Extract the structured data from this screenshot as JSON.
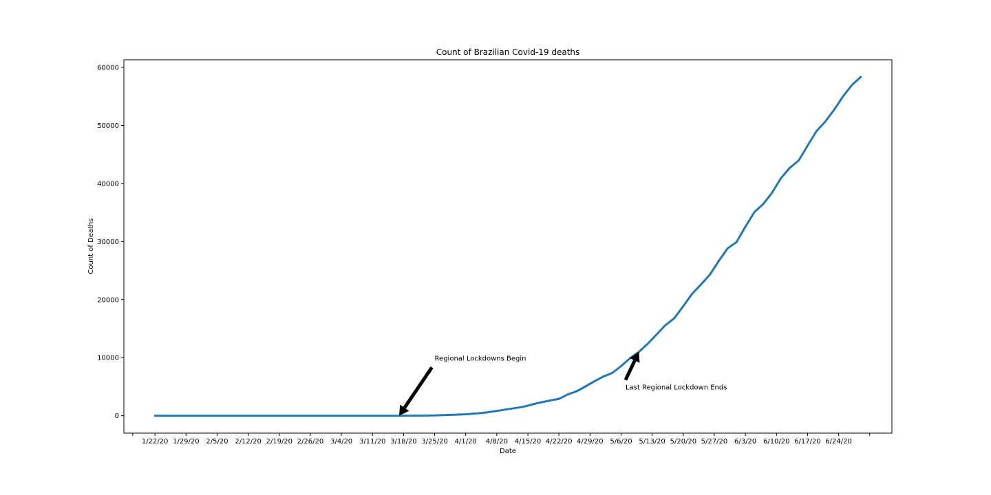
{
  "chart_data": {
    "type": "line",
    "title": "Count of Brazilian Covid-19 deaths",
    "xlabel": "Date",
    "ylabel": "Count of Deaths",
    "grid": false,
    "legend": false,
    "xlim": [
      "1/15/20",
      "7/6/20"
    ],
    "ylim": [
      -3000,
      61300
    ],
    "x_ticks": [
      "1/22/20",
      "1/29/20",
      "2/5/20",
      "2/12/20",
      "2/19/20",
      "2/26/20",
      "3/4/20",
      "3/11/20",
      "3/18/20",
      "3/25/20",
      "4/1/20",
      "4/8/20",
      "4/15/20",
      "4/22/20",
      "4/29/20",
      "5/6/20",
      "5/13/20",
      "5/20/20",
      "5/27/20",
      "6/3/20",
      "6/10/20",
      "6/17/20",
      "6/24/20"
    ],
    "y_ticks": [
      0,
      10000,
      20000,
      30000,
      40000,
      50000,
      60000
    ],
    "series": [
      {
        "name": "",
        "color": "#1f77b4",
        "points": [
          [
            "1/22/20",
            0
          ],
          [
            "3/18/20",
            0
          ],
          [
            "3/25/20",
            60
          ],
          [
            "4/1/20",
            240
          ],
          [
            "4/5/20",
            490
          ],
          [
            "4/8/20",
            820
          ],
          [
            "4/10/20",
            1060
          ],
          [
            "4/14/20",
            1530
          ],
          [
            "4/17/20",
            2140
          ],
          [
            "4/19/20",
            2460
          ],
          [
            "4/22/20",
            2910
          ],
          [
            "4/24/20",
            3670
          ],
          [
            "4/26/20",
            4210
          ],
          [
            "4/28/20",
            5050
          ],
          [
            "4/30/20",
            5930
          ],
          [
            "5/2/20",
            6750
          ],
          [
            "5/4/20",
            7360
          ],
          [
            "5/6/20",
            8540
          ],
          [
            "5/8/20",
            9900
          ],
          [
            "5/10/20",
            10980
          ],
          [
            "5/12/20",
            12400
          ],
          [
            "5/14/20",
            13990
          ],
          [
            "5/16/20",
            15600
          ],
          [
            "5/18/20",
            16800
          ],
          [
            "5/20/20",
            18860
          ],
          [
            "5/22/20",
            20990
          ],
          [
            "5/24/20",
            22600
          ],
          [
            "5/26/20",
            24300
          ],
          [
            "5/28/20",
            26650
          ],
          [
            "5/30/20",
            28830
          ],
          [
            "6/1/20",
            29900
          ],
          [
            "6/3/20",
            32550
          ],
          [
            "6/5/20",
            35050
          ],
          [
            "6/7/20",
            36450
          ],
          [
            "6/9/20",
            38400
          ],
          [
            "6/11/20",
            40900
          ],
          [
            "6/13/20",
            42700
          ],
          [
            "6/15/20",
            43950
          ],
          [
            "6/17/20",
            46500
          ],
          [
            "6/19/20",
            49000
          ],
          [
            "6/21/20",
            50650
          ],
          [
            "6/23/20",
            52700
          ],
          [
            "6/25/20",
            55000
          ],
          [
            "6/27/20",
            56950
          ],
          [
            "6/29/20",
            58350
          ]
        ]
      }
    ],
    "annotations": [
      {
        "text": "Regional Lockdowns Begin",
        "point": [
          "3/17/20",
          0
        ],
        "text_at": [
          "3/25/20",
          9500
        ]
      },
      {
        "text": "Last Regional Lockdown Ends",
        "point": [
          "5/10/20",
          11000
        ],
        "text_at": [
          "5/7/20",
          4500
        ]
      }
    ]
  }
}
